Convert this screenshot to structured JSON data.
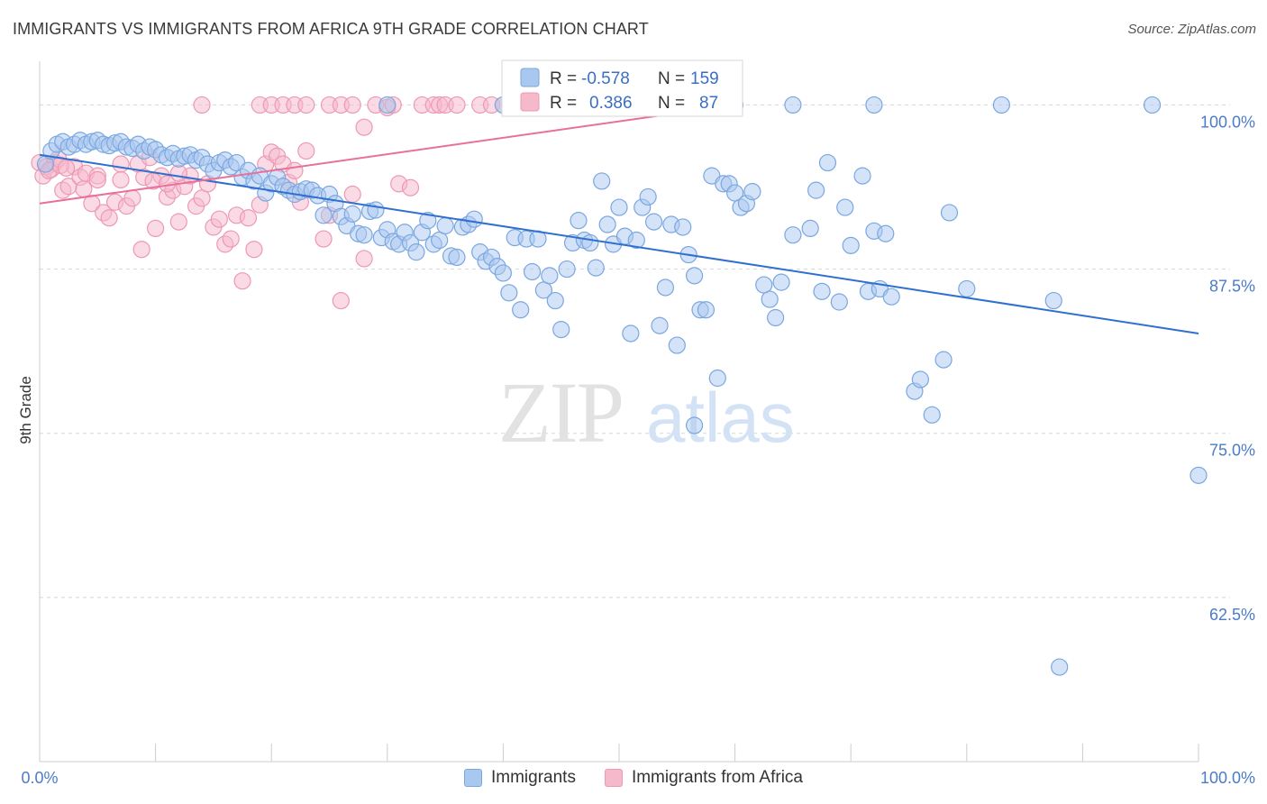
{
  "title": "IMMIGRANTS VS IMMIGRANTS FROM AFRICA 9TH GRADE CORRELATION CHART",
  "source": "Source: ZipAtlas.com",
  "watermark": {
    "zip": "ZIP",
    "atlas": "atlas"
  },
  "colors": {
    "blue_fill": "#a9c8f0",
    "blue_stroke": "#7aa7e0",
    "blue_line": "#2f6fd0",
    "pink_fill": "#f6b8cb",
    "pink_stroke": "#ee98b3",
    "pink_line": "#e8709a",
    "grid": "#d8d8d8",
    "tick_label": "#4a7cc7"
  },
  "legend": {
    "r_label": "R =",
    "n_label": "N =",
    "rows": [
      {
        "r": "-0.578",
        "n": "159"
      },
      {
        "r": "0.386",
        "n": "87"
      }
    ]
  },
  "bottom_legend": [
    "Immigrants",
    "Immigrants from Africa"
  ],
  "chart_data": {
    "type": "scatter",
    "ylabel": "9th Grade",
    "xlim": [
      0,
      100
    ],
    "ylim": [
      50,
      102.5
    ],
    "x_tick_labels": [
      "0.0%",
      "100.0%"
    ],
    "y_ticks": [
      100,
      87.5,
      75,
      62.5
    ],
    "y_tick_labels": [
      "100.0%",
      "87.5%",
      "75.0%",
      "62.5%"
    ],
    "grid": "horizontal dashed",
    "legend_position": "top-center",
    "series": [
      {
        "name": "Immigrants",
        "color": "blue",
        "trend": [
          [
            0,
            96.2
          ],
          [
            100,
            82.6
          ]
        ],
        "points": [
          [
            0.5,
            95.5
          ],
          [
            1,
            96.5
          ],
          [
            1.5,
            97
          ],
          [
            2,
            97.2
          ],
          [
            2.5,
            96.8
          ],
          [
            3,
            97
          ],
          [
            3.5,
            97.3
          ],
          [
            4,
            97
          ],
          [
            4.5,
            97.2
          ],
          [
            5,
            97.3
          ],
          [
            5.5,
            97
          ],
          [
            6,
            96.9
          ],
          [
            6.5,
            97.1
          ],
          [
            7,
            97.2
          ],
          [
            7.5,
            96.8
          ],
          [
            8,
            96.7
          ],
          [
            8.5,
            97
          ],
          [
            9,
            96.5
          ],
          [
            9.5,
            96.8
          ],
          [
            10,
            96.6
          ],
          [
            10.5,
            96.2
          ],
          [
            11,
            96
          ],
          [
            11.5,
            96.3
          ],
          [
            12,
            95.9
          ],
          [
            12.5,
            96.1
          ],
          [
            13,
            96.2
          ],
          [
            13.5,
            95.8
          ],
          [
            14,
            96
          ],
          [
            14.5,
            95.5
          ],
          [
            15,
            95
          ],
          [
            15.5,
            95.6
          ],
          [
            16,
            95.8
          ],
          [
            16.5,
            95.3
          ],
          [
            17,
            95.6
          ],
          [
            17.5,
            94.5
          ],
          [
            18,
            95
          ],
          [
            18.5,
            94.2
          ],
          [
            19,
            94.6
          ],
          [
            19.5,
            93.3
          ],
          [
            20,
            94
          ],
          [
            20.5,
            94.5
          ],
          [
            21,
            93.8
          ],
          [
            21.5,
            93.5
          ],
          [
            22,
            93.2
          ],
          [
            22.5,
            93.4
          ],
          [
            23,
            93.6
          ],
          [
            23.5,
            93.5
          ],
          [
            24,
            93.1
          ],
          [
            24.5,
            91.6
          ],
          [
            25,
            93.2
          ],
          [
            25.5,
            92.5
          ],
          [
            26,
            91.5
          ],
          [
            26.5,
            90.8
          ],
          [
            27,
            91.7
          ],
          [
            27.5,
            90.2
          ],
          [
            28,
            90.1
          ],
          [
            28.5,
            91.9
          ],
          [
            29,
            92
          ],
          [
            29.5,
            89.9
          ],
          [
            30,
            90.5
          ],
          [
            30.5,
            89.6
          ],
          [
            31,
            89.4
          ],
          [
            31.5,
            90.3
          ],
          [
            32,
            89.5
          ],
          [
            32.5,
            88.8
          ],
          [
            33,
            90.3
          ],
          [
            33.5,
            91.2
          ],
          [
            34,
            89.4
          ],
          [
            34.5,
            89.7
          ],
          [
            35,
            90.8
          ],
          [
            35.5,
            88.5
          ],
          [
            36,
            88.4
          ],
          [
            36.5,
            90.7
          ],
          [
            37,
            90.9
          ],
          [
            37.5,
            91.3
          ],
          [
            38,
            88.8
          ],
          [
            38.5,
            88.1
          ],
          [
            39,
            88.4
          ],
          [
            39.5,
            87.7
          ],
          [
            40,
            87.2
          ],
          [
            40.5,
            85.7
          ],
          [
            41,
            89.9
          ],
          [
            41.5,
            84.4
          ],
          [
            42,
            89.8
          ],
          [
            42.5,
            87.3
          ],
          [
            43,
            89.8
          ],
          [
            43.5,
            85.9
          ],
          [
            44,
            87
          ],
          [
            44.5,
            85.1
          ],
          [
            45,
            82.9
          ],
          [
            45.5,
            87.5
          ],
          [
            46,
            89.5
          ],
          [
            46.5,
            91.2
          ],
          [
            47,
            89.7
          ],
          [
            47.5,
            89.5
          ],
          [
            48,
            87.6
          ],
          [
            48.5,
            94.2
          ],
          [
            49,
            90.9
          ],
          [
            49.5,
            89.4
          ],
          [
            50,
            92.2
          ],
          [
            50.5,
            90
          ],
          [
            51,
            82.6
          ],
          [
            51.5,
            89.7
          ],
          [
            52,
            92.2
          ],
          [
            52.5,
            93
          ],
          [
            53,
            91.1
          ],
          [
            53.5,
            83.2
          ],
          [
            54,
            86.1
          ],
          [
            54.5,
            90.9
          ],
          [
            55,
            81.7
          ],
          [
            55.5,
            90.7
          ],
          [
            56,
            88.6
          ],
          [
            56.5,
            87
          ],
          [
            57,
            84.4
          ],
          [
            57.5,
            84.4
          ],
          [
            58,
            94.6
          ],
          [
            58.5,
            79.2
          ],
          [
            59,
            94
          ],
          [
            59.5,
            94
          ],
          [
            60,
            93.3
          ],
          [
            60.5,
            92.2
          ],
          [
            61,
            92.5
          ],
          [
            61.5,
            93.4
          ],
          [
            62.5,
            86.3
          ],
          [
            63,
            85.2
          ],
          [
            63.5,
            83.8
          ],
          [
            64,
            86.5
          ],
          [
            65,
            90.1
          ],
          [
            66.5,
            90.6
          ],
          [
            67,
            93.5
          ],
          [
            67.5,
            85.8
          ],
          [
            68,
            95.6
          ],
          [
            69,
            85
          ],
          [
            69.5,
            92.2
          ],
          [
            70,
            89.3
          ],
          [
            71,
            94.6
          ],
          [
            71.5,
            85.8
          ],
          [
            72,
            90.4
          ],
          [
            72.5,
            86
          ],
          [
            73,
            90.2
          ],
          [
            73.5,
            85.4
          ],
          [
            75.5,
            78.2
          ],
          [
            76,
            79.1
          ],
          [
            77,
            76.4
          ],
          [
            78,
            80.6
          ],
          [
            78.5,
            91.8
          ],
          [
            80,
            86
          ],
          [
            87.5,
            85.1
          ],
          [
            100,
            71.8
          ],
          [
            88,
            57.2
          ],
          [
            65,
            100
          ],
          [
            72,
            100
          ],
          [
            83,
            100
          ],
          [
            96,
            100
          ],
          [
            56.5,
            75.6
          ],
          [
            48,
            100
          ],
          [
            30,
            100
          ],
          [
            40,
            100
          ],
          [
            50,
            100
          ],
          [
            60,
            100
          ]
        ]
      },
      {
        "name": "Immigrants from Africa",
        "color": "pink",
        "trend": [
          [
            0,
            92.5
          ],
          [
            60,
            100
          ]
        ],
        "points": [
          [
            0,
            95.6
          ],
          [
            0.3,
            94.6
          ],
          [
            0.6,
            95.3
          ],
          [
            1,
            95.1
          ],
          [
            1.3,
            95.6
          ],
          [
            1.6,
            95.9
          ],
          [
            2,
            93.5
          ],
          [
            2.5,
            93.8
          ],
          [
            3,
            95.3
          ],
          [
            3.5,
            94.5
          ],
          [
            3.8,
            93.6
          ],
          [
            4,
            94.8
          ],
          [
            4.5,
            92.5
          ],
          [
            5,
            94.6
          ],
          [
            5.5,
            91.8
          ],
          [
            6,
            91.4
          ],
          [
            6.5,
            92.6
          ],
          [
            7,
            94.3
          ],
          [
            7.5,
            92.3
          ],
          [
            8,
            92.9
          ],
          [
            8.5,
            95.5
          ],
          [
            8.8,
            89
          ],
          [
            9,
            94.5
          ],
          [
            9.5,
            96
          ],
          [
            10,
            90.6
          ],
          [
            10.5,
            94.6
          ],
          [
            11,
            93
          ],
          [
            11.5,
            93.5
          ],
          [
            12,
            91.1
          ],
          [
            12.5,
            93.8
          ],
          [
            13,
            94.6
          ],
          [
            13.5,
            92.3
          ],
          [
            14,
            92.9
          ],
          [
            14.5,
            94
          ],
          [
            15,
            90.7
          ],
          [
            15.5,
            91.3
          ],
          [
            16,
            89.4
          ],
          [
            16.5,
            89.8
          ],
          [
            17,
            91.6
          ],
          [
            17.5,
            86.6
          ],
          [
            18,
            91.4
          ],
          [
            18.5,
            89
          ],
          [
            19,
            92.4
          ],
          [
            19.5,
            95.5
          ],
          [
            20,
            96.4
          ],
          [
            20.5,
            96.1
          ],
          [
            21,
            95.5
          ],
          [
            21.5,
            94.1
          ],
          [
            22,
            95
          ],
          [
            22.5,
            92.6
          ],
          [
            23,
            96.5
          ],
          [
            24.5,
            89.8
          ],
          [
            25,
            91.6
          ],
          [
            26,
            85.1
          ],
          [
            27,
            93.2
          ],
          [
            28,
            88.3
          ],
          [
            29,
            100
          ],
          [
            30,
            99.8
          ],
          [
            31,
            94
          ],
          [
            32,
            93.7
          ],
          [
            14,
            100
          ],
          [
            19,
            100
          ],
          [
            20,
            100
          ],
          [
            21,
            100
          ],
          [
            22,
            100
          ],
          [
            23,
            100
          ],
          [
            25,
            100
          ],
          [
            26,
            100
          ],
          [
            27,
            100
          ],
          [
            28,
            98.3
          ],
          [
            30.5,
            100
          ],
          [
            33,
            100
          ],
          [
            34,
            100
          ],
          [
            34.5,
            100
          ],
          [
            35,
            100
          ],
          [
            36,
            100
          ],
          [
            38,
            100
          ],
          [
            39,
            100
          ],
          [
            40,
            100
          ],
          [
            0.8,
            95
          ],
          [
            1.8,
            95.4
          ],
          [
            2.3,
            95.2
          ],
          [
            5,
            94.3
          ],
          [
            7,
            95.5
          ],
          [
            9.8,
            94.2
          ],
          [
            11,
            94
          ],
          [
            12,
            94.8
          ]
        ]
      }
    ]
  }
}
